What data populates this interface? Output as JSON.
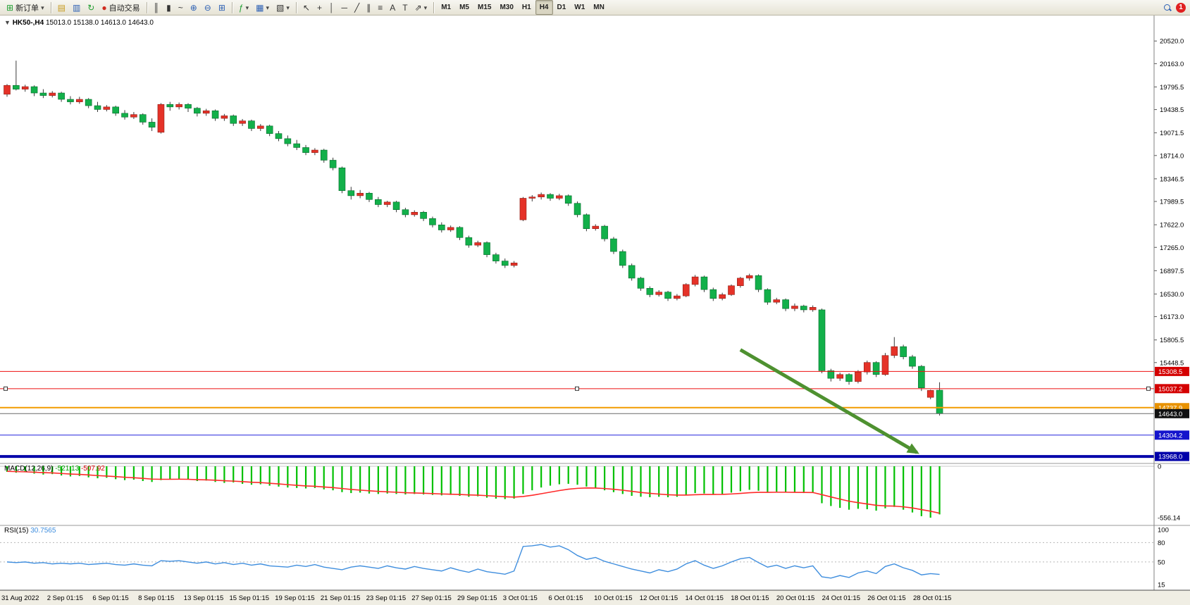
{
  "toolbar": {
    "new_order_label": "新订单",
    "autotrade_label": "自动交易",
    "timeframes": [
      "M1",
      "M5",
      "M15",
      "M30",
      "H1",
      "H4",
      "D1",
      "W1",
      "MN"
    ],
    "active_timeframe": "H4",
    "notification_count": "1",
    "icons": {
      "new_order": "⊞",
      "dropdown": "▾",
      "new_chart": "▤",
      "profiles": "▥",
      "refresh": "↻",
      "autotrading": "●",
      "bars": "║",
      "candles": "▮",
      "line_chart": "~",
      "zoom_in": "⊕",
      "zoom_out": "⊖",
      "tile": "⊞",
      "indicators": "ƒ",
      "objects": "▦",
      "templates": "▧",
      "cursor": "↖",
      "crosshair": "+",
      "vline": "│",
      "hline": "─",
      "trendline": "╱",
      "channel": "∥",
      "fibonacci": "≡",
      "text": "A",
      "label": "T",
      "arrows": "⇗"
    }
  },
  "header": {
    "collapse_glyph": "▼",
    "symbol_period": "HK50-,H4",
    "open": "15013.0",
    "high": "15138.0",
    "low": "14613.0",
    "close": "14643.0"
  },
  "chart_data": {
    "type": "candlestick",
    "symbol": "HK50-",
    "timeframe": "H4",
    "colors": {
      "up": "#e53228",
      "down": "#12b04a",
      "wick": "#3a3a3a",
      "macd_hist": "#00c000",
      "macd_signal": "#ff2a2a",
      "rsi": "#3f8ede",
      "arrow": "#4e9130"
    },
    "price_axis": {
      "ylim": [
        13880,
        20900
      ],
      "decimals": 1,
      "ticks": [
        20520.0,
        20163.0,
        19795.5,
        19438.5,
        19071.5,
        18714.0,
        18346.5,
        17989.5,
        17622.0,
        17265.0,
        16897.5,
        16530.0,
        16173.0,
        15805.5,
        15448.5
      ]
    },
    "levels": [
      {
        "text": "15308.5",
        "price": 15308.5,
        "bg": "#d40000",
        "line_color": "#ee1111",
        "width": 1,
        "handles": false
      },
      {
        "text": "15037.2",
        "price": 15037.2,
        "bg": "#d40000",
        "line_color": "#ee1111",
        "width": 1,
        "handles": true
      },
      {
        "text": "14737.9",
        "price": 14737.9,
        "bg": "#e89200",
        "line_color": "#f29b00",
        "width": 2,
        "handles": false
      },
      {
        "text": "14643.0",
        "price": 14643.0,
        "bg": "#111111",
        "line_color": "#6a6a6a",
        "width": 1,
        "handles": false
      },
      {
        "text": "14304.2",
        "price": 14304.2,
        "bg": "#1414cc",
        "line_color": "#2222dd",
        "width": 1,
        "handles": false
      },
      {
        "text": "13968.0",
        "price": 13968.0,
        "bg": "#0000aa",
        "line_color": "#0000aa",
        "width": 4,
        "handles": false
      }
    ],
    "candles": [
      [
        19680,
        19840,
        19640,
        19820
      ],
      [
        19820,
        20210,
        19740,
        19760
      ],
      [
        19760,
        19830,
        19720,
        19800
      ],
      [
        19800,
        19820,
        19650,
        19700
      ],
      [
        19700,
        19760,
        19620,
        19660
      ],
      [
        19660,
        19730,
        19630,
        19700
      ],
      [
        19700,
        19720,
        19560,
        19600
      ],
      [
        19600,
        19650,
        19520,
        19560
      ],
      [
        19560,
        19640,
        19530,
        19600
      ],
      [
        19600,
        19620,
        19460,
        19500
      ],
      [
        19500,
        19560,
        19400,
        19440
      ],
      [
        19440,
        19510,
        19410,
        19480
      ],
      [
        19480,
        19500,
        19340,
        19380
      ],
      [
        19380,
        19430,
        19280,
        19320
      ],
      [
        19320,
        19400,
        19290,
        19360
      ],
      [
        19360,
        19380,
        19200,
        19240
      ],
      [
        19240,
        19300,
        19100,
        19160
      ],
      [
        19080,
        19540,
        19060,
        19520
      ],
      [
        19520,
        19560,
        19420,
        19480
      ],
      [
        19480,
        19550,
        19440,
        19520
      ],
      [
        19520,
        19540,
        19400,
        19460
      ],
      [
        19460,
        19480,
        19330,
        19380
      ],
      [
        19380,
        19450,
        19340,
        19420
      ],
      [
        19420,
        19440,
        19260,
        19300
      ],
      [
        19300,
        19370,
        19260,
        19340
      ],
      [
        19340,
        19360,
        19180,
        19220
      ],
      [
        19220,
        19290,
        19180,
        19260
      ],
      [
        19260,
        19280,
        19100,
        19140
      ],
      [
        19140,
        19210,
        19100,
        19180
      ],
      [
        19180,
        19200,
        19020,
        19060
      ],
      [
        19060,
        19100,
        18940,
        18980
      ],
      [
        18980,
        19030,
        18860,
        18900
      ],
      [
        18900,
        18960,
        18800,
        18840
      ],
      [
        18840,
        18880,
        18720,
        18760
      ],
      [
        18760,
        18830,
        18720,
        18800
      ],
      [
        18800,
        18820,
        18600,
        18640
      ],
      [
        18640,
        18680,
        18480,
        18520
      ],
      [
        18520,
        18540,
        18120,
        18160
      ],
      [
        18160,
        18220,
        18020,
        18080
      ],
      [
        18080,
        18170,
        18040,
        18120
      ],
      [
        18120,
        18140,
        17980,
        18020
      ],
      [
        18020,
        18060,
        17900,
        17940
      ],
      [
        17940,
        18000,
        17900,
        17980
      ],
      [
        17980,
        18000,
        17820,
        17860
      ],
      [
        17860,
        17890,
        17740,
        17780
      ],
      [
        17780,
        17850,
        17750,
        17820
      ],
      [
        17820,
        17840,
        17680,
        17720
      ],
      [
        17720,
        17750,
        17580,
        17620
      ],
      [
        17620,
        17660,
        17500,
        17540
      ],
      [
        17540,
        17610,
        17510,
        17580
      ],
      [
        17580,
        17600,
        17380,
        17420
      ],
      [
        17420,
        17450,
        17260,
        17300
      ],
      [
        17300,
        17370,
        17270,
        17340
      ],
      [
        17340,
        17360,
        17110,
        17150
      ],
      [
        17150,
        17180,
        17010,
        17050
      ],
      [
        17050,
        17090,
        16940,
        16980
      ],
      [
        16980,
        17050,
        16950,
        17020
      ],
      [
        17700,
        18060,
        17680,
        18040
      ],
      [
        18040,
        18090,
        17990,
        18060
      ],
      [
        18060,
        18130,
        18020,
        18100
      ],
      [
        18100,
        18120,
        18000,
        18040
      ],
      [
        18040,
        18110,
        18010,
        18080
      ],
      [
        18080,
        18100,
        17920,
        17960
      ],
      [
        17960,
        17990,
        17740,
        17780
      ],
      [
        17780,
        17800,
        17520,
        17560
      ],
      [
        17560,
        17630,
        17530,
        17600
      ],
      [
        17600,
        17620,
        17360,
        17400
      ],
      [
        17400,
        17430,
        17160,
        17200
      ],
      [
        17200,
        17230,
        16940,
        16980
      ],
      [
        16980,
        17010,
        16740,
        16780
      ],
      [
        16780,
        16800,
        16580,
        16620
      ],
      [
        16620,
        16650,
        16480,
        16520
      ],
      [
        16520,
        16590,
        16490,
        16560
      ],
      [
        16560,
        16580,
        16420,
        16460
      ],
      [
        16460,
        16530,
        16430,
        16500
      ],
      [
        16500,
        16700,
        16480,
        16680
      ],
      [
        16680,
        16830,
        16650,
        16800
      ],
      [
        16800,
        16820,
        16560,
        16600
      ],
      [
        16600,
        16630,
        16420,
        16460
      ],
      [
        16460,
        16550,
        16430,
        16520
      ],
      [
        16520,
        16680,
        16500,
        16660
      ],
      [
        16660,
        16800,
        16630,
        16780
      ],
      [
        16780,
        16850,
        16740,
        16820
      ],
      [
        16820,
        16840,
        16560,
        16600
      ],
      [
        16600,
        16620,
        16360,
        16400
      ],
      [
        16400,
        16470,
        16370,
        16440
      ],
      [
        16440,
        16460,
        16260,
        16300
      ],
      [
        16300,
        16380,
        16260,
        16340
      ],
      [
        16340,
        16360,
        16240,
        16280
      ],
      [
        16280,
        16350,
        16250,
        16320
      ],
      [
        16280,
        16300,
        15280,
        15320
      ],
      [
        15320,
        15350,
        15150,
        15200
      ],
      [
        15200,
        15290,
        15160,
        15260
      ],
      [
        15260,
        15280,
        15100,
        15150
      ],
      [
        15150,
        15330,
        15120,
        15300
      ],
      [
        15300,
        15480,
        15260,
        15450
      ],
      [
        15450,
        15470,
        15220,
        15260
      ],
      [
        15260,
        15600,
        15240,
        15560
      ],
      [
        15560,
        15850,
        15520,
        15700
      ],
      [
        15700,
        15730,
        15500,
        15540
      ],
      [
        15540,
        15570,
        15350,
        15390
      ],
      [
        15390,
        15410,
        15000,
        15050
      ],
      [
        14900,
        15020,
        14870,
        15010
      ],
      [
        15013,
        15138,
        14613,
        14643
      ]
    ],
    "macd": {
      "label": "MACD(12,26,9)",
      "value": "-521.13",
      "signal_value": "-507.92",
      "ylim": [
        -556.14,
        0
      ],
      "axis_ticks": [
        {
          "text": "0",
          "v": 0
        },
        {
          "text": "-556.14",
          "v": -556.14
        }
      ],
      "histogram": [
        -60,
        -70,
        -65,
        -80,
        -90,
        -85,
        -100,
        -110,
        -105,
        -120,
        -130,
        -125,
        -140,
        -150,
        -145,
        -160,
        -170,
        -150,
        -140,
        -135,
        -145,
        -160,
        -155,
        -170,
        -180,
        -175,
        -190,
        -200,
        -195,
        -210,
        -220,
        -230,
        -235,
        -240,
        -235,
        -250,
        -260,
        -280,
        -290,
        -285,
        -295,
        -300,
        -295,
        -300,
        -305,
        -300,
        -305,
        -310,
        -315,
        -310,
        -320,
        -330,
        -325,
        -340,
        -350,
        -355,
        -350,
        -300,
        -260,
        -230,
        -210,
        -195,
        -190,
        -200,
        -220,
        -240,
        -260,
        -280,
        -300,
        -320,
        -330,
        -335,
        -330,
        -335,
        -330,
        -310,
        -290,
        -295,
        -305,
        -300,
        -285,
        -270,
        -255,
        -265,
        -280,
        -275,
        -280,
        -285,
        -290,
        -285,
        -400,
        -430,
        -450,
        -470,
        -460,
        -465,
        -480,
        -455,
        -440,
        -470,
        -500,
        -540,
        -556,
        -521.13
      ],
      "signal": [
        -55,
        -58,
        -60,
        -64,
        -69,
        -72,
        -78,
        -84,
        -88,
        -94,
        -101,
        -106,
        -112,
        -119,
        -124,
        -131,
        -139,
        -141,
        -141,
        -140,
        -141,
        -145,
        -147,
        -151,
        -157,
        -161,
        -166,
        -173,
        -177,
        -184,
        -191,
        -199,
        -206,
        -213,
        -217,
        -224,
        -231,
        -241,
        -251,
        -258,
        -265,
        -272,
        -277,
        -281,
        -286,
        -289,
        -292,
        -296,
        -300,
        -302,
        -305,
        -310,
        -313,
        -318,
        -324,
        -330,
        -334,
        -327,
        -314,
        -297,
        -280,
        -263,
        -248,
        -239,
        -235,
        -236,
        -241,
        -249,
        -259,
        -271,
        -283,
        -293,
        -301,
        -308,
        -312,
        -312,
        -308,
        -305,
        -305,
        -304,
        -300,
        -294,
        -286,
        -282,
        -282,
        -281,
        -281,
        -282,
        -283,
        -284,
        -307,
        -332,
        -355,
        -378,
        -394,
        -408,
        -422,
        -429,
        -431,
        -439,
        -451,
        -469,
        -486,
        -507.92
      ]
    },
    "rsi": {
      "label": "RSI(15)",
      "value": "30.7565",
      "ylim": [
        5,
        105
      ],
      "axis_ticks": [
        {
          "text": "100",
          "v": 100
        },
        {
          "text": "80",
          "v": 80
        },
        {
          "text": "50",
          "v": 50
        },
        {
          "text": "15",
          "v": 15
        }
      ],
      "dotted_levels": [
        80,
        50
      ],
      "values": [
        50,
        49,
        50,
        48,
        49,
        47,
        48,
        47,
        48,
        46,
        47,
        48,
        46,
        45,
        47,
        45,
        44,
        52,
        51,
        52,
        50,
        48,
        50,
        47,
        49,
        46,
        48,
        45,
        47,
        44,
        43,
        42,
        45,
        43,
        46,
        42,
        40,
        38,
        42,
        44,
        42,
        40,
        44,
        41,
        39,
        43,
        40,
        38,
        36,
        41,
        37,
        34,
        39,
        35,
        33,
        31,
        36,
        74,
        75,
        77,
        73,
        75,
        69,
        60,
        54,
        57,
        51,
        47,
        43,
        39,
        36,
        33,
        38,
        35,
        39,
        47,
        52,
        45,
        40,
        44,
        50,
        55,
        57,
        49,
        42,
        45,
        40,
        44,
        41,
        44,
        27,
        25,
        29,
        26,
        33,
        36,
        32,
        43,
        47,
        41,
        37,
        30,
        32,
        30.7565
      ]
    },
    "x_axis": {
      "labels": [
        "31 Aug 2022",
        "2 Sep 01:15",
        "6 Sep 01:15",
        "8 Sep 01:15",
        "13 Sep 01:15",
        "15 Sep 01:15",
        "19 Sep 01:15",
        "21 Sep 01:15",
        "23 Sep 01:15",
        "27 Sep 01:15",
        "29 Sep 01:15",
        "3 Oct 01:15",
        "6 Oct 01:15",
        "10 Oct 01:15",
        "12 Oct 01:15",
        "14 Oct 01:15",
        "18 Oct 01:15",
        "20 Oct 01:15",
        "24 Oct 01:15",
        "26 Oct 01:15",
        "28 Oct 01:15"
      ]
    },
    "annotation_arrow": {
      "from_bar": 81,
      "from_price": 15650,
      "to_bar": 100.5,
      "to_price": 14030,
      "stroke_width": 5
    }
  }
}
